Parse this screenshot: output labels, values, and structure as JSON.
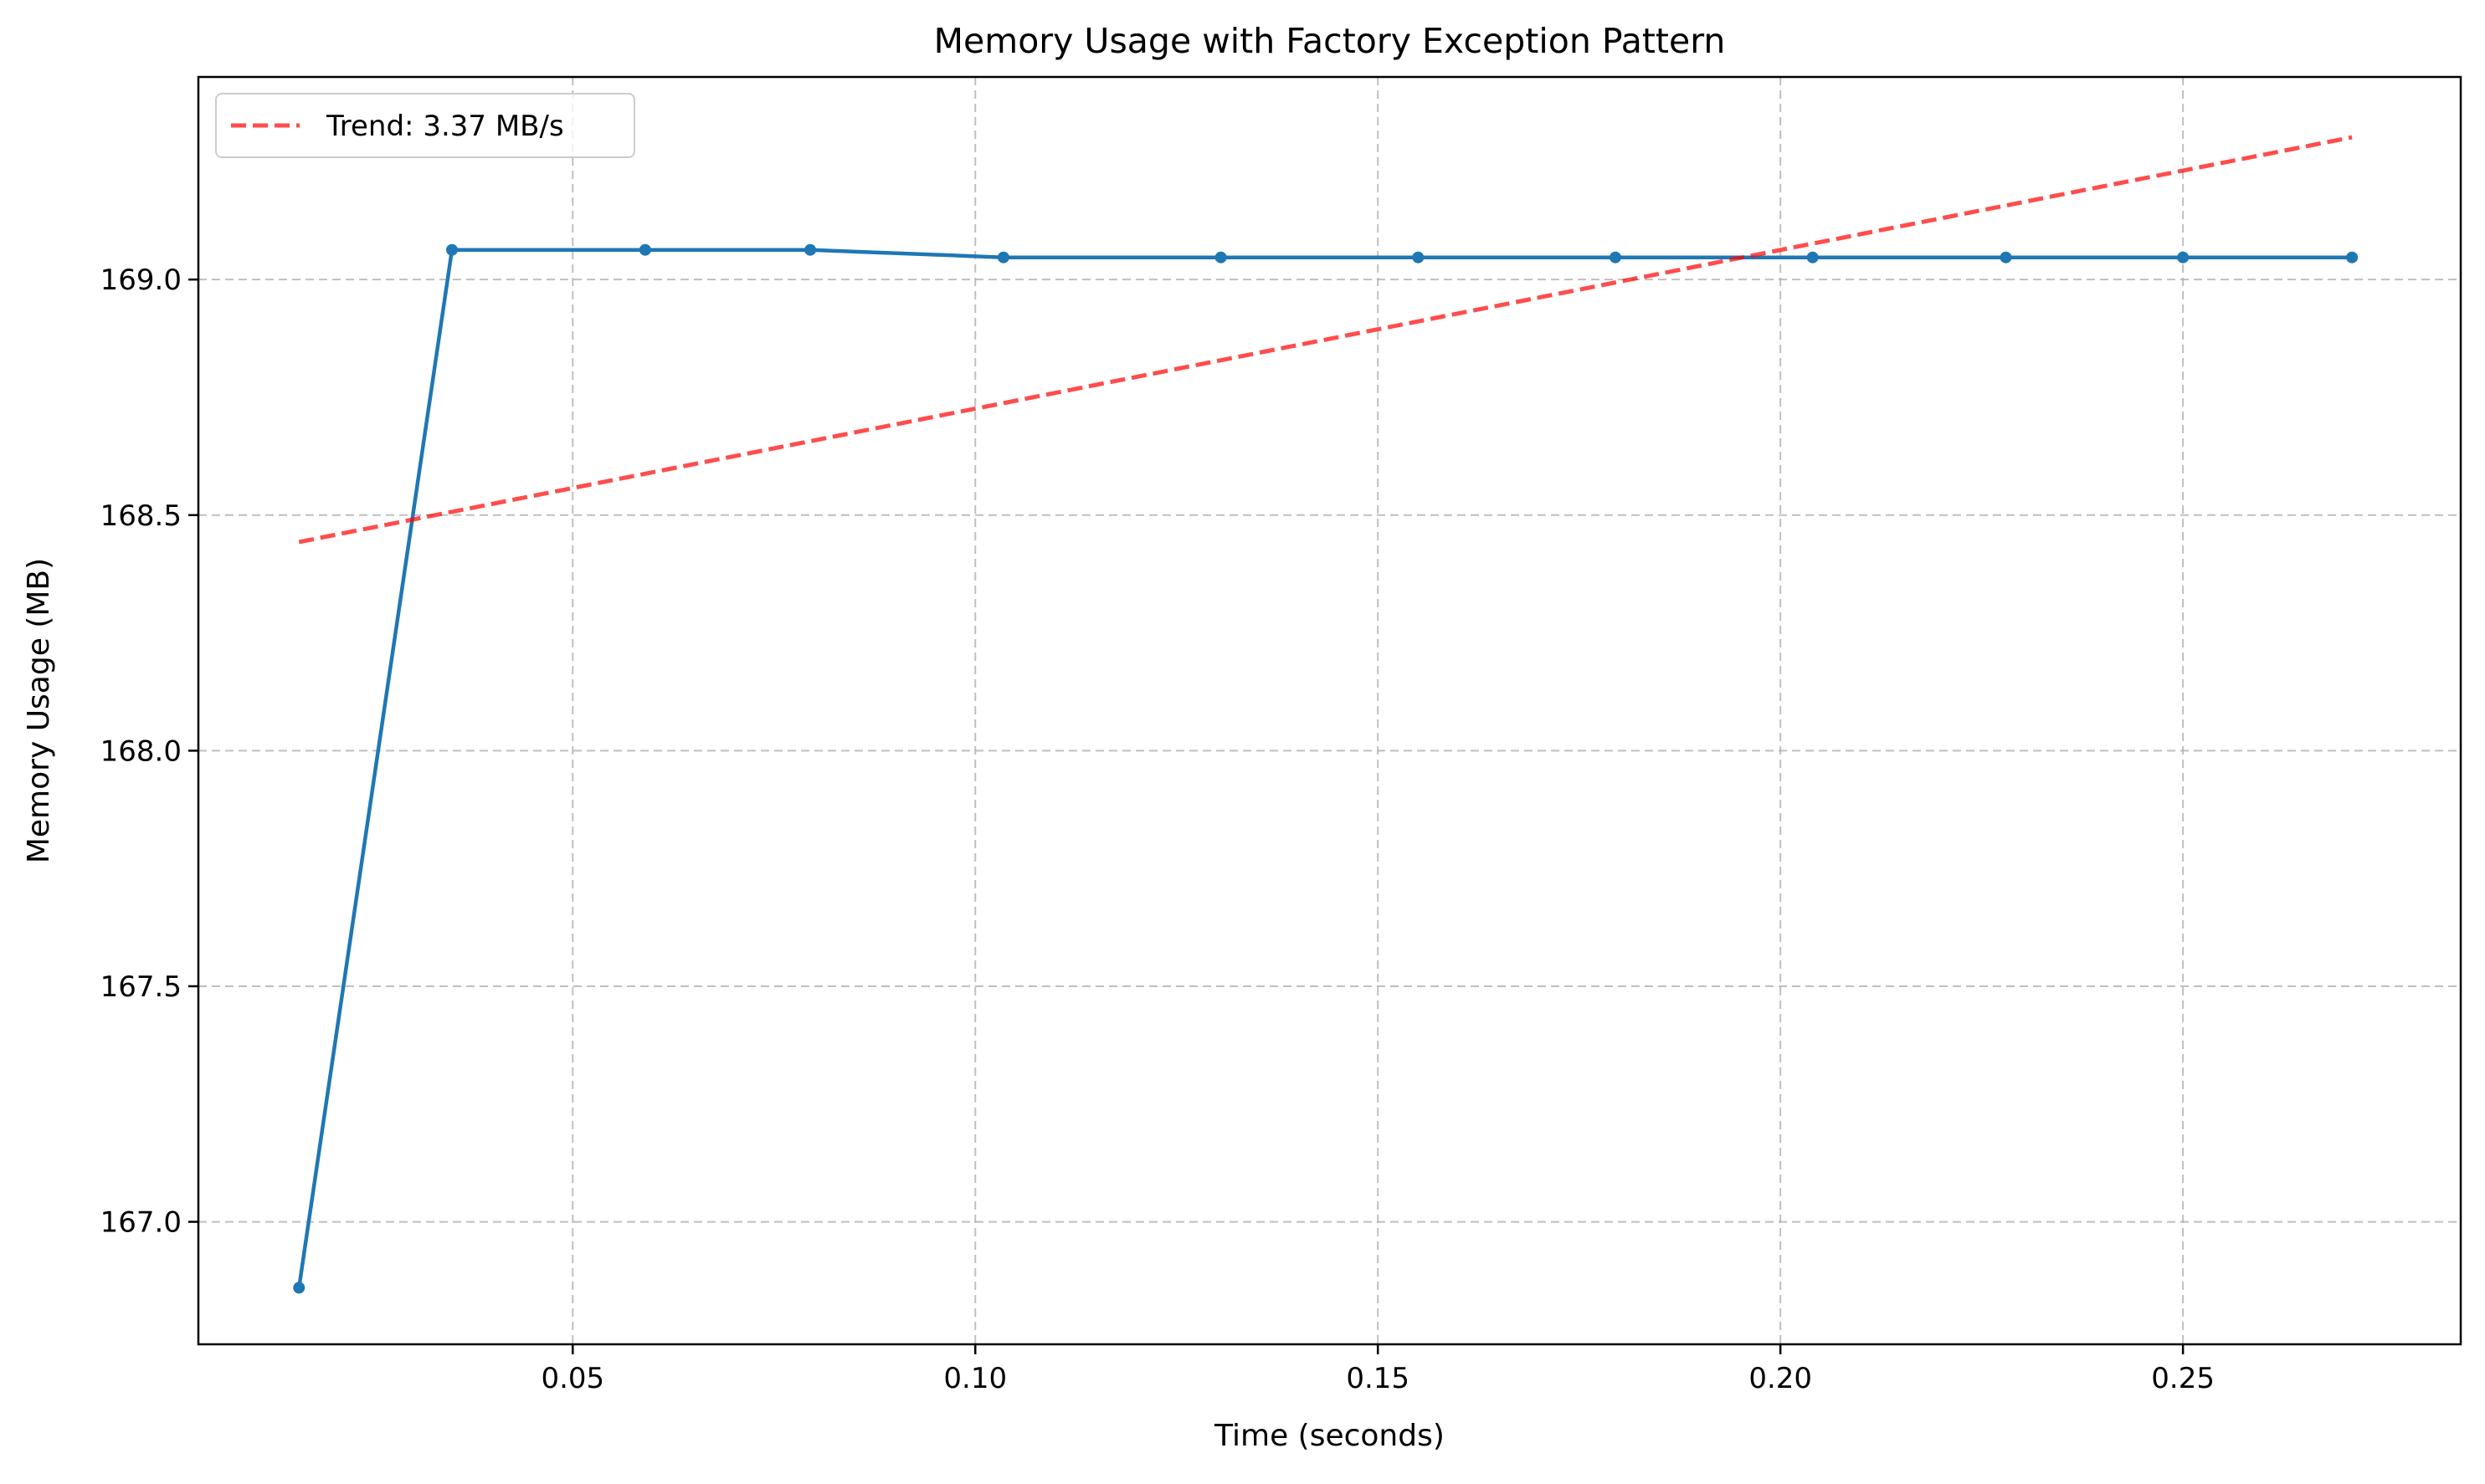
{
  "chart_data": {
    "type": "line",
    "title": "Memory Usage with Factory Exception Pattern",
    "xlabel": "Time (seconds)",
    "ylabel": "Memory Usage (MB)",
    "xlim": [
      0.0035,
      0.2845
    ],
    "ylim": [
      166.74,
      169.43
    ],
    "xticks": [
      0.05,
      0.1,
      0.15,
      0.2,
      0.25
    ],
    "xtick_labels": [
      "0.05",
      "0.10",
      "0.15",
      "0.20",
      "0.25"
    ],
    "yticks": [
      167.0,
      167.5,
      168.0,
      168.5,
      169.0
    ],
    "ytick_labels": [
      "167.0",
      "167.5",
      "168.0",
      "168.5",
      "169.0"
    ],
    "grid": true,
    "legend_position": "upper-left",
    "series": [
      {
        "color": "#1f77b4",
        "marker": "circle",
        "x": [
          0.016,
          0.035,
          0.059,
          0.0795,
          0.1035,
          0.1305,
          0.155,
          0.1795,
          0.204,
          0.228,
          0.25,
          0.271
        ],
        "y": [
          166.86,
          169.063,
          169.063,
          169.063,
          169.047,
          169.047,
          169.047,
          169.047,
          169.047,
          169.047,
          169.047,
          169.047
        ]
      },
      {
        "name": "Trend: 3.37 MB/s",
        "color": "#ff0000",
        "style": "dashed",
        "x": [
          0.016,
          0.271
        ],
        "y": [
          168.443,
          169.302
        ]
      }
    ]
  }
}
